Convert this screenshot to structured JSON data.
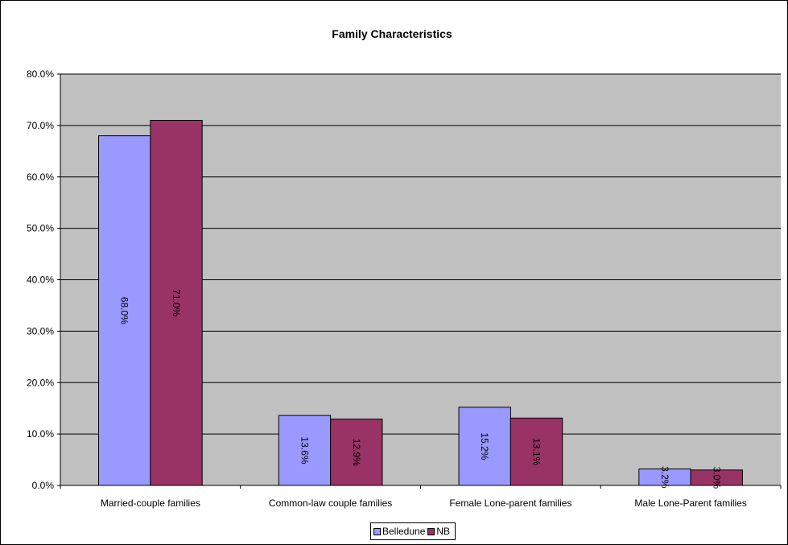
{
  "chart_data": {
    "type": "bar",
    "title": "Family Characteristics",
    "xlabel": "",
    "ylabel": "",
    "categories": [
      "Married-couple families",
      "Common-law couple families",
      "Female Lone-parent families",
      "Male Lone-Parent families"
    ],
    "series": [
      {
        "name": "Belledune",
        "values": [
          68.0,
          13.6,
          15.2,
          3.2
        ],
        "labels": [
          "68.0%",
          "13.6%",
          "15.2%",
          "3.2%"
        ],
        "color": "#9999ff"
      },
      {
        "name": "NB",
        "values": [
          71.0,
          12.9,
          13.1,
          3.0
        ],
        "labels": [
          "71.0%",
          "12.9%",
          "13.1%",
          "3.0%"
        ],
        "color": "#993366"
      }
    ],
    "ylim": [
      0,
      80
    ],
    "yticks": [
      "0.0%",
      "10.0%",
      "20.0%",
      "30.0%",
      "40.0%",
      "50.0%",
      "60.0%",
      "70.0%",
      "80.0%"
    ],
    "grid": true,
    "plot_background": "#c0c0c0",
    "legend_position": "bottom"
  }
}
